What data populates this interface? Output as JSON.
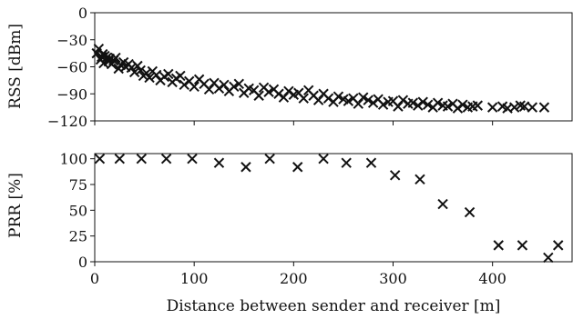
{
  "chart_data": [
    {
      "type": "scatter",
      "title": "",
      "xlabel": "",
      "ylabel": "RSS [dBm]",
      "xlim": [
        0,
        480
      ],
      "ylim": [
        -120,
        0
      ],
      "yticks": [
        0,
        -30,
        -60,
        -90,
        -120
      ],
      "xtick_labels_shown": false,
      "marker": "x",
      "grid": false,
      "series": [
        {
          "x": [
            2,
            4,
            6,
            7,
            8,
            9,
            10,
            12,
            14,
            15,
            17,
            19,
            21,
            24,
            26,
            29,
            31,
            34,
            37,
            40,
            43,
            46,
            49,
            52,
            55,
            58,
            62,
            66,
            70,
            74,
            78,
            82,
            86,
            90,
            95,
            100,
            105,
            110,
            115,
            120,
            125,
            130,
            135,
            140,
            145,
            150,
            155,
            160,
            165,
            170,
            175,
            180,
            185,
            190,
            195,
            200,
            205,
            210,
            215,
            220,
            225,
            230,
            235,
            240,
            245,
            250,
            255,
            260,
            265,
            270,
            275,
            280,
            285,
            290,
            295,
            300,
            305,
            310,
            315,
            320,
            325,
            330,
            335,
            340,
            345,
            350,
            355,
            360,
            365,
            370,
            375,
            380,
            385,
            400,
            410,
            415,
            422,
            428,
            432,
            440,
            452
          ],
          "y": [
            -45,
            -40,
            -52,
            -49,
            -46,
            -56,
            -48,
            -50,
            -54,
            -51,
            -57,
            -53,
            -50,
            -62,
            -58,
            -55,
            -60,
            -57,
            -61,
            -66,
            -59,
            -64,
            -70,
            -67,
            -72,
            -65,
            -69,
            -75,
            -71,
            -68,
            -77,
            -73,
            -70,
            -80,
            -76,
            -82,
            -74,
            -79,
            -85,
            -78,
            -84,
            -80,
            -87,
            -82,
            -79,
            -89,
            -84,
            -86,
            -92,
            -83,
            -88,
            -85,
            -90,
            -94,
            -87,
            -91,
            -89,
            -95,
            -86,
            -92,
            -97,
            -90,
            -95,
            -99,
            -93,
            -96,
            -98,
            -95,
            -101,
            -94,
            -97,
            -100,
            -96,
            -102,
            -99,
            -98,
            -104,
            -97,
            -101,
            -100,
            -103,
            -99,
            -102,
            -105,
            -100,
            -103,
            -104,
            -101,
            -106,
            -102,
            -105,
            -104,
            -103,
            -105,
            -104,
            -106,
            -105,
            -103,
            -104,
            -105,
            -105
          ]
        }
      ]
    },
    {
      "type": "scatter",
      "title": "",
      "xlabel": "Distance between sender and receiver [m]",
      "ylabel": "PRR [%]",
      "xlim": [
        0,
        480
      ],
      "ylim": [
        0,
        105
      ],
      "xticks": [
        0,
        100,
        200,
        300,
        400
      ],
      "yticks": [
        0,
        25,
        50,
        75,
        100
      ],
      "marker": "x",
      "grid": false,
      "series": [
        {
          "x": [
            5,
            25,
            47,
            72,
            98,
            125,
            152,
            176,
            204,
            230,
            253,
            278,
            302,
            327,
            350,
            377,
            406,
            430,
            456,
            466
          ],
          "y": [
            100,
            100,
            100,
            100,
            100,
            96,
            92,
            100,
            92,
            100,
            96,
            96,
            84,
            80,
            56,
            48,
            16,
            16,
            4,
            16
          ]
        }
      ]
    }
  ]
}
